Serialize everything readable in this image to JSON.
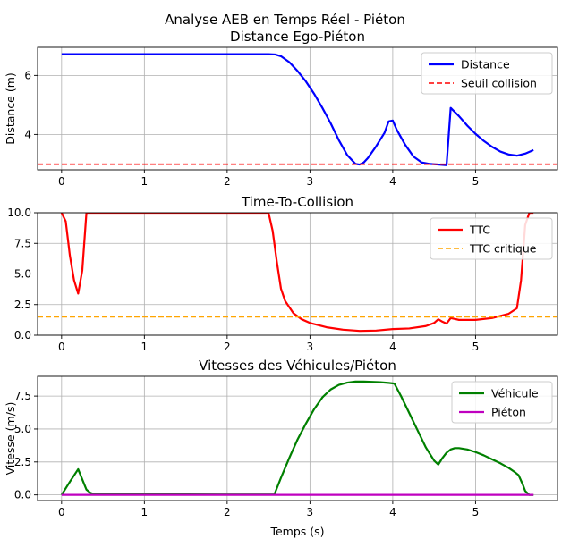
{
  "figure": {
    "suptitle": "Analyse AEB en Temps Réel - Piéton"
  },
  "chart_data": [
    {
      "type": "line",
      "title": "Distance Ego-Piéton",
      "xlabel": "",
      "ylabel": "Distance (m)",
      "xlim": [
        -0.29,
        5.99
      ],
      "ylim": [
        2.8,
        6.95
      ],
      "xticks": [
        0,
        1,
        2,
        3,
        4,
        5
      ],
      "yticks": [
        4,
        6
      ],
      "grid": true,
      "legend": "top-right",
      "series": [
        {
          "name": "Distance",
          "color": "#0000ff",
          "style": "solid",
          "x": [
            0,
            2.5,
            2.58,
            2.65,
            2.75,
            2.85,
            2.95,
            3.05,
            3.15,
            3.25,
            3.35,
            3.45,
            3.55,
            3.6,
            3.65,
            3.7,
            3.8,
            3.9,
            3.95,
            4.0,
            4.05,
            4.15,
            4.25,
            4.35,
            4.45,
            4.55,
            4.65,
            4.7,
            4.8,
            4.9,
            5.0,
            5.1,
            5.2,
            5.3,
            5.4,
            5.5,
            5.6,
            5.7
          ],
          "y": [
            6.72,
            6.72,
            6.71,
            6.65,
            6.45,
            6.15,
            5.8,
            5.38,
            4.9,
            4.38,
            3.8,
            3.3,
            3.0,
            2.98,
            3.05,
            3.2,
            3.6,
            4.05,
            4.44,
            4.47,
            4.15,
            3.65,
            3.25,
            3.05,
            3.0,
            2.98,
            2.96,
            4.9,
            4.62,
            4.3,
            4.02,
            3.78,
            3.58,
            3.42,
            3.32,
            3.28,
            3.35,
            3.47
          ]
        },
        {
          "name": "Seuil collision",
          "color": "#ff0000",
          "style": "dashed",
          "x": [
            -0.29,
            5.99
          ],
          "y": [
            2.99,
            2.99
          ]
        }
      ]
    },
    {
      "type": "line",
      "title": "Time-To-Collision",
      "xlabel": "",
      "ylabel": "",
      "xlim": [
        -0.29,
        5.99
      ],
      "ylim": [
        0,
        10
      ],
      "xticks": [
        0,
        1,
        2,
        3,
        4,
        5
      ],
      "yticks": [
        0.0,
        2.5,
        5.0,
        7.5,
        10.0
      ],
      "grid": true,
      "legend": "top-right",
      "series": [
        {
          "name": "TTC",
          "color": "#ff0000",
          "style": "solid",
          "x": [
            0,
            0.05,
            0.1,
            0.15,
            0.2,
            0.25,
            0.3,
            0.35,
            1.0,
            2.0,
            2.5,
            2.55,
            2.6,
            2.65,
            2.7,
            2.8,
            2.9,
            3.0,
            3.2,
            3.4,
            3.6,
            3.8,
            4.0,
            4.2,
            4.4,
            4.5,
            4.55,
            4.6,
            4.65,
            4.7,
            4.8,
            5.0,
            5.2,
            5.4,
            5.5,
            5.55,
            5.6,
            5.65,
            5.7
          ],
          "y": [
            10,
            9.3,
            6.5,
            4.5,
            3.4,
            5.3,
            10,
            10,
            10,
            10,
            10,
            8.5,
            6.0,
            3.8,
            2.8,
            1.8,
            1.3,
            1.0,
            0.65,
            0.45,
            0.35,
            0.38,
            0.5,
            0.55,
            0.75,
            1.0,
            1.3,
            1.1,
            0.95,
            1.4,
            1.25,
            1.25,
            1.4,
            1.75,
            2.2,
            4.5,
            9.0,
            10,
            10
          ]
        },
        {
          "name": "TTC critique",
          "color": "#ffa500",
          "style": "dashed",
          "x": [
            -0.29,
            5.99
          ],
          "y": [
            1.5,
            1.5
          ]
        }
      ]
    },
    {
      "type": "line",
      "title": "Vitesses des Véhicules/Piéton",
      "xlabel": "Temps (s)",
      "ylabel": "Vitesse (m/s)",
      "xlim": [
        -0.29,
        5.99
      ],
      "ylim": [
        -0.43,
        9.0
      ],
      "xticks": [
        0,
        1,
        2,
        3,
        4,
        5
      ],
      "yticks": [
        0.0,
        2.5,
        5.0,
        7.5
      ],
      "grid": true,
      "legend": "top-right",
      "series": [
        {
          "name": "Véhicule",
          "color": "#008000",
          "style": "solid",
          "x": [
            0,
            0.1,
            0.2,
            0.3,
            0.35,
            0.4,
            0.5,
            0.6,
            1.0,
            2.0,
            2.57,
            2.65,
            2.75,
            2.85,
            2.95,
            3.05,
            3.15,
            3.25,
            3.35,
            3.45,
            3.55,
            3.65,
            3.75,
            3.85,
            3.95,
            4.02,
            4.1,
            4.2,
            4.3,
            4.4,
            4.5,
            4.55,
            4.6,
            4.65,
            4.7,
            4.75,
            4.8,
            4.9,
            5.0,
            5.1,
            5.2,
            5.3,
            5.4,
            5.47,
            5.52,
            5.57,
            5.6,
            5.65,
            5.7
          ],
          "y": [
            0,
            1.0,
            1.95,
            0.4,
            0.15,
            0.05,
            0.1,
            0.1,
            0.05,
            0.03,
            0.03,
            1.3,
            2.8,
            4.2,
            5.4,
            6.5,
            7.4,
            8.0,
            8.35,
            8.52,
            8.6,
            8.6,
            8.58,
            8.55,
            8.5,
            8.45,
            7.5,
            6.2,
            4.9,
            3.6,
            2.6,
            2.3,
            2.8,
            3.2,
            3.45,
            3.55,
            3.55,
            3.45,
            3.25,
            3.0,
            2.7,
            2.4,
            2.05,
            1.75,
            1.5,
            0.8,
            0.3,
            0.0,
            0.0
          ]
        },
        {
          "name": "Piéton",
          "color": "#bf00bf",
          "style": "solid",
          "x": [
            0,
            5.7
          ],
          "y": [
            0,
            0
          ]
        }
      ]
    }
  ]
}
